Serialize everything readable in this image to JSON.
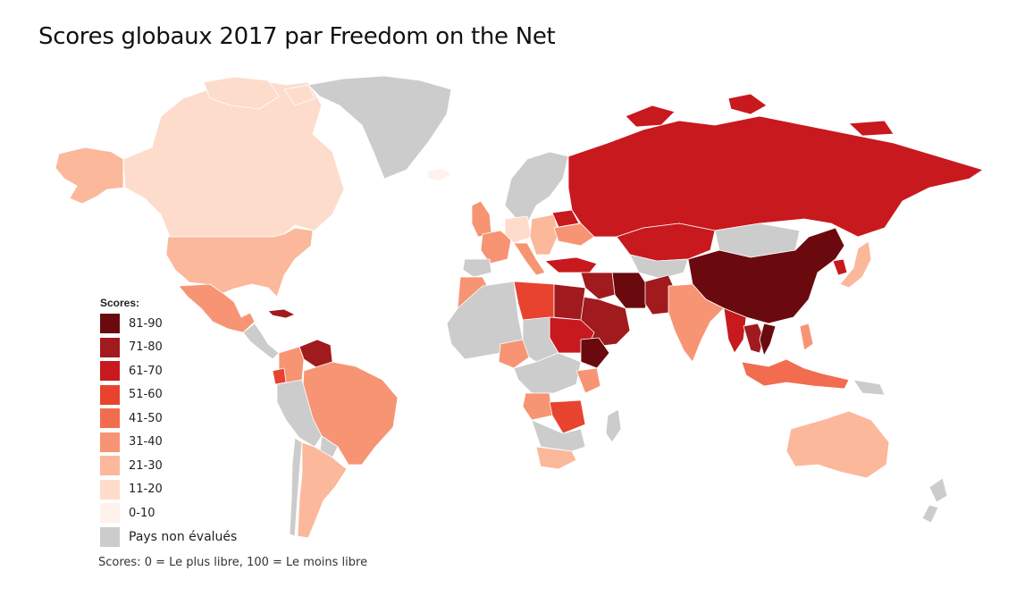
{
  "title": "Scores globaux 2017 par Freedom on the Net",
  "footnote": "Scores: 0 = Le plus libre, 100 = Le moins libre",
  "legend": {
    "title": "Scores:",
    "items": [
      {
        "label": "81-90",
        "color": "#6a0a0f"
      },
      {
        "label": "71-80",
        "color": "#a11a1d"
      },
      {
        "label": "61-70",
        "color": "#c8191e"
      },
      {
        "label": "51-60",
        "color": "#e8432f"
      },
      {
        "label": "41-50",
        "color": "#f26d4f"
      },
      {
        "label": "31-40",
        "color": "#f79474"
      },
      {
        "label": "21-30",
        "color": "#fbb89b"
      },
      {
        "label": "11-20",
        "color": "#fddccc"
      },
      {
        "label": "0-10",
        "color": "#fff1eb"
      },
      {
        "label": "Pays non évalués",
        "color": "#cccccc"
      }
    ]
  }
}
